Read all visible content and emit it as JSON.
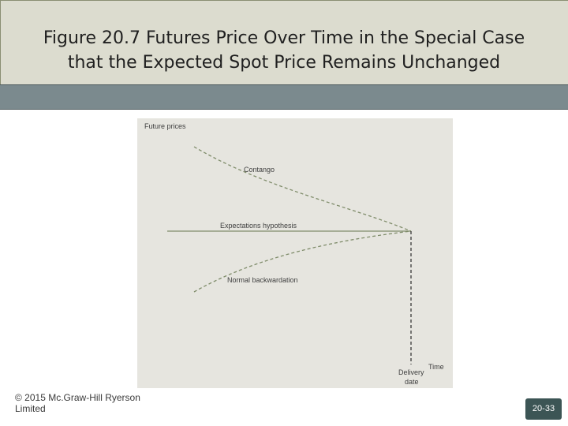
{
  "slide": {
    "title": "Figure 20.7 Futures Price Over Time in the Special Case\nthat the Expected Spot Price Remains Unchanged",
    "copyright_line1": "© 2015 Mc.Graw-Hill Ryerson",
    "copyright_line2": "Limited",
    "page_number": "20-33"
  },
  "figure": {
    "y_axis_label": "Future prices",
    "x_axis_label": "Time",
    "delivery_label_line1": "Delivery",
    "delivery_label_line2": "date",
    "curves": [
      {
        "name": "Contango",
        "label": "Contango",
        "style": "dashed"
      },
      {
        "name": "Expectations hypothesis",
        "label": "Expectations hypothesis",
        "style": "solid"
      },
      {
        "name": "Normal backwardation",
        "label": "Normal backwardation",
        "style": "dashed"
      }
    ],
    "colors": {
      "curve": "#7f8c6a",
      "delivery_line": "#2a2a2a",
      "panel_bg": "#e6e5df"
    }
  }
}
